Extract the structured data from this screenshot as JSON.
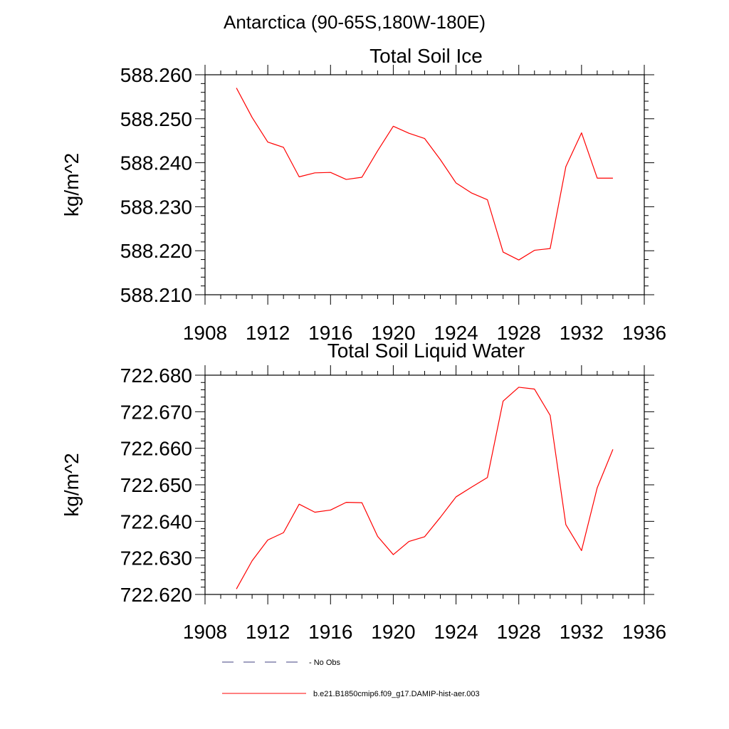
{
  "figure": {
    "region_title": "Antarctica (90-65S,180W-180E)",
    "legend": [
      {
        "label": "No Obs",
        "color": "#404080",
        "style": "dashed"
      },
      {
        "label": "b.e21.B1850cmip6.f09_g17.DAMIP-hist-aer.003",
        "color": "#ff0000",
        "style": "solid"
      }
    ]
  },
  "chart_data": [
    {
      "type": "line",
      "title": "Total Soil Ice",
      "xlabel": "",
      "ylabel": "kg/m^2",
      "xlim": [
        1908,
        1936
      ],
      "ylim": [
        588.21,
        588.26
      ],
      "xticks": [
        1908,
        1912,
        1916,
        1920,
        1924,
        1928,
        1932,
        1936
      ],
      "xtick_labels": [
        "1908",
        "1912",
        "1916",
        "1920",
        "1924",
        "1928",
        "1932",
        "1936"
      ],
      "yticks": [
        588.21,
        588.22,
        588.23,
        588.24,
        588.25,
        588.26
      ],
      "ytick_labels": [
        "588.210",
        "588.220",
        "588.230",
        "588.240",
        "588.250",
        "588.260"
      ],
      "grid": false,
      "series": [
        {
          "name": "b.e21.B1850cmip6.f09_g17.DAMIP-hist-aer.003",
          "color": "#ff0000",
          "x": [
            1910,
            1911,
            1912,
            1913,
            1914,
            1915,
            1916,
            1917,
            1918,
            1919,
            1920,
            1921,
            1922,
            1923,
            1924,
            1925,
            1926,
            1927,
            1928,
            1929,
            1930,
            1931,
            1932,
            1933,
            1934
          ],
          "y": [
            588.257,
            588.2503,
            588.2447,
            588.2435,
            588.2368,
            588.2377,
            588.2378,
            588.2362,
            588.2367,
            588.2427,
            588.2483,
            588.2467,
            588.2455,
            588.2407,
            588.2354,
            588.2331,
            588.2316,
            588.2197,
            588.2179,
            588.2201,
            588.2205,
            588.2391,
            588.2468,
            588.2365,
            588.2365
          ]
        }
      ]
    },
    {
      "type": "line",
      "title": "Total Soil Liquid Water",
      "xlabel": "",
      "ylabel": "kg/m^2",
      "xlim": [
        1908,
        1936
      ],
      "ylim": [
        722.62,
        722.68
      ],
      "xticks": [
        1908,
        1912,
        1916,
        1920,
        1924,
        1928,
        1932,
        1936
      ],
      "xtick_labels": [
        "1908",
        "1912",
        "1916",
        "1920",
        "1924",
        "1928",
        "1932",
        "1936"
      ],
      "yticks": [
        722.62,
        722.63,
        722.64,
        722.65,
        722.66,
        722.67,
        722.68
      ],
      "ytick_labels": [
        "722.620",
        "722.630",
        "722.640",
        "722.650",
        "722.660",
        "722.670",
        "722.680"
      ],
      "grid": false,
      "series": [
        {
          "name": "b.e21.B1850cmip6.f09_g17.DAMIP-hist-aer.003",
          "color": "#ff0000",
          "x": [
            1910,
            1911,
            1912,
            1913,
            1914,
            1915,
            1916,
            1917,
            1918,
            1919,
            1920,
            1921,
            1922,
            1923,
            1924,
            1925,
            1926,
            1927,
            1928,
            1929,
            1930,
            1931,
            1932,
            1933,
            1934
          ],
          "y": [
            722.6215,
            722.6292,
            722.6349,
            722.6369,
            722.6447,
            722.6425,
            722.6431,
            722.6452,
            722.6451,
            722.6359,
            722.6309,
            722.6345,
            722.6358,
            722.6411,
            722.6467,
            722.6494,
            722.652,
            722.6729,
            722.6767,
            722.6762,
            722.669,
            722.6391,
            722.632,
            722.6492,
            722.6597
          ]
        }
      ]
    }
  ]
}
